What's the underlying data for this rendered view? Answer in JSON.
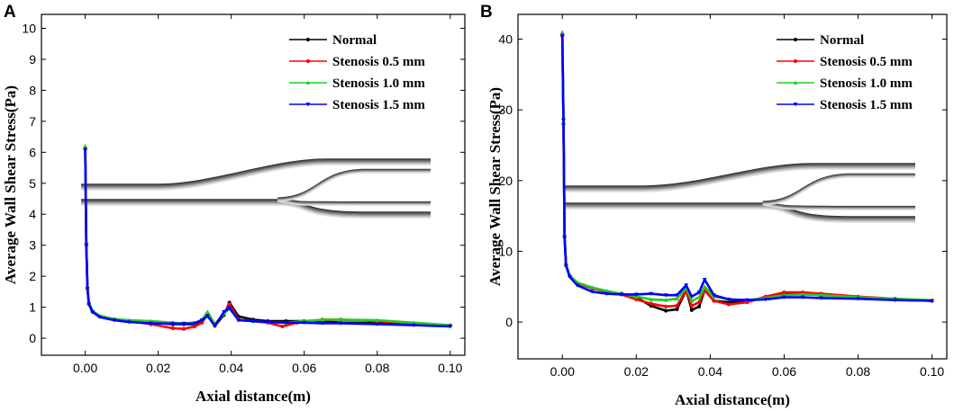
{
  "chart_data": [
    {
      "panel": "A",
      "type": "line",
      "xlabel": "Axial distance(m)",
      "ylabel": "Average Wall Shear Stress(Pa)",
      "xlim": [
        -0.012,
        0.104
      ],
      "ylim": [
        -0.55,
        10.45
      ],
      "xticks": [
        0.0,
        0.02,
        0.04,
        0.06,
        0.08,
        0.1
      ],
      "xtick_labels": [
        "0.00",
        "0.02",
        "0.04",
        "0.06",
        "0.08",
        "0.10"
      ],
      "yticks": [
        0,
        1,
        2,
        3,
        4,
        5,
        6,
        7,
        8,
        9,
        10
      ],
      "ytick_labels": [
        "0",
        "1",
        "2",
        "3",
        "4",
        "5",
        "6",
        "7",
        "8",
        "9",
        "10"
      ],
      "legend_position": "top-right",
      "series": [
        {
          "name": "Normal",
          "color": "#000000",
          "marker": "circle",
          "x": [
            0.0,
            0.0003,
            0.0006,
            0.001,
            0.002,
            0.004,
            0.008,
            0.012,
            0.018,
            0.024,
            0.027,
            0.03,
            0.032,
            0.0335,
            0.0355,
            0.038,
            0.0395,
            0.042,
            0.046,
            0.05,
            0.055,
            0.06,
            0.065,
            0.07,
            0.08,
            0.09,
            0.1
          ],
          "y": [
            6.1,
            3.0,
            1.6,
            1.1,
            0.85,
            0.7,
            0.6,
            0.55,
            0.5,
            0.45,
            0.45,
            0.45,
            0.55,
            0.75,
            0.4,
            0.75,
            1.15,
            0.7,
            0.6,
            0.55,
            0.55,
            0.55,
            0.55,
            0.5,
            0.48,
            0.45,
            0.4
          ]
        },
        {
          "name": "Stenosis 0.5 mm",
          "color": "#ff0000",
          "marker": "circle",
          "x": [
            0.0,
            0.0003,
            0.0006,
            0.001,
            0.002,
            0.004,
            0.008,
            0.012,
            0.018,
            0.024,
            0.027,
            0.03,
            0.032,
            0.0335,
            0.0355,
            0.038,
            0.0395,
            0.042,
            0.046,
            0.05,
            0.054,
            0.058,
            0.065,
            0.07,
            0.08,
            0.09,
            0.1
          ],
          "y": [
            6.1,
            3.0,
            1.6,
            1.1,
            0.85,
            0.7,
            0.6,
            0.55,
            0.45,
            0.32,
            0.3,
            0.38,
            0.5,
            0.78,
            0.42,
            0.8,
            1.1,
            0.6,
            0.55,
            0.5,
            0.38,
            0.5,
            0.6,
            0.6,
            0.55,
            0.48,
            0.42
          ]
        },
        {
          "name": "Stenosis 1.0 mm",
          "color": "#22cc22",
          "marker": "triangle-up",
          "x": [
            0.0,
            0.0003,
            0.0006,
            0.001,
            0.002,
            0.004,
            0.008,
            0.012,
            0.018,
            0.024,
            0.027,
            0.03,
            0.032,
            0.0335,
            0.0355,
            0.038,
            0.0395,
            0.042,
            0.046,
            0.05,
            0.055,
            0.06,
            0.065,
            0.07,
            0.08,
            0.09,
            0.1
          ],
          "y": [
            6.2,
            3.1,
            1.65,
            1.15,
            0.88,
            0.72,
            0.62,
            0.58,
            0.55,
            0.5,
            0.48,
            0.5,
            0.6,
            0.85,
            0.45,
            0.8,
            0.95,
            0.6,
            0.55,
            0.52,
            0.5,
            0.55,
            0.6,
            0.6,
            0.58,
            0.5,
            0.42
          ]
        },
        {
          "name": "Stenosis 1.5 mm",
          "color": "#0000ff",
          "marker": "triangle-down",
          "x": [
            0.0,
            0.0003,
            0.0006,
            0.001,
            0.002,
            0.004,
            0.008,
            0.012,
            0.018,
            0.024,
            0.027,
            0.03,
            0.032,
            0.0335,
            0.0355,
            0.038,
            0.0395,
            0.042,
            0.046,
            0.05,
            0.055,
            0.06,
            0.065,
            0.07,
            0.08,
            0.09,
            0.1
          ],
          "y": [
            6.1,
            3.0,
            1.6,
            1.1,
            0.85,
            0.68,
            0.58,
            0.52,
            0.48,
            0.47,
            0.47,
            0.48,
            0.58,
            0.72,
            0.4,
            0.85,
            0.98,
            0.58,
            0.55,
            0.52,
            0.5,
            0.5,
            0.48,
            0.48,
            0.45,
            0.42,
            0.38
          ]
        }
      ]
    },
    {
      "panel": "B",
      "type": "line",
      "xlabel": "Axial distance(m)",
      "ylabel": "Average Wall Shear Stress(Pa)",
      "xlim": [
        -0.012,
        0.104
      ],
      "ylim": [
        -5.2,
        43.5
      ],
      "xticks": [
        0.0,
        0.02,
        0.04,
        0.06,
        0.08,
        0.1
      ],
      "xtick_labels": [
        "0.00",
        "0.02",
        "0.04",
        "0.06",
        "0.08",
        "0.10"
      ],
      "yticks": [
        0,
        10,
        20,
        30,
        40
      ],
      "ytick_labels": [
        "0",
        "10",
        "20",
        "30",
        "40"
      ],
      "legend_position": "top-right",
      "series": [
        {
          "name": "Normal",
          "color": "#000000",
          "marker": "circle",
          "x": [
            0.0,
            0.0003,
            0.0006,
            0.001,
            0.002,
            0.004,
            0.008,
            0.012,
            0.016,
            0.02,
            0.024,
            0.028,
            0.031,
            0.0335,
            0.035,
            0.037,
            0.0385,
            0.041,
            0.045,
            0.05,
            0.055,
            0.06,
            0.065,
            0.07,
            0.08,
            0.09,
            0.1
          ],
          "y": [
            40.5,
            28.0,
            12.0,
            8.0,
            6.5,
            5.5,
            4.8,
            4.3,
            4.0,
            3.5,
            2.3,
            1.6,
            1.8,
            4.5,
            1.7,
            2.2,
            4.5,
            3.0,
            2.8,
            3.0,
            3.5,
            4.0,
            4.0,
            3.8,
            3.5,
            3.2,
            3.0
          ]
        },
        {
          "name": "Stenosis 0.5 mm",
          "color": "#ff0000",
          "marker": "circle",
          "x": [
            0.0,
            0.0003,
            0.0006,
            0.001,
            0.002,
            0.004,
            0.008,
            0.012,
            0.016,
            0.02,
            0.024,
            0.028,
            0.031,
            0.0335,
            0.035,
            0.037,
            0.0385,
            0.041,
            0.045,
            0.05,
            0.055,
            0.06,
            0.065,
            0.07,
            0.08,
            0.09,
            0.1
          ],
          "y": [
            40.5,
            28.0,
            12.0,
            8.0,
            6.5,
            5.5,
            4.8,
            4.3,
            3.9,
            3.2,
            2.6,
            2.2,
            2.3,
            4.5,
            2.3,
            2.8,
            4.5,
            3.0,
            2.5,
            2.8,
            3.6,
            4.2,
            4.2,
            4.0,
            3.6,
            3.3,
            3.0
          ]
        },
        {
          "name": "Stenosis 1.0 mm",
          "color": "#22cc22",
          "marker": "triangle-up",
          "x": [
            0.0,
            0.0003,
            0.0006,
            0.001,
            0.002,
            0.004,
            0.008,
            0.012,
            0.016,
            0.02,
            0.024,
            0.028,
            0.031,
            0.0335,
            0.035,
            0.037,
            0.0385,
            0.041,
            0.045,
            0.05,
            0.055,
            0.06,
            0.065,
            0.07,
            0.08,
            0.09,
            0.1
          ],
          "y": [
            41.0,
            29.0,
            12.2,
            8.2,
            6.6,
            5.6,
            4.9,
            4.4,
            4.0,
            3.6,
            3.2,
            3.1,
            3.3,
            4.8,
            3.0,
            3.5,
            5.0,
            3.6,
            3.2,
            3.1,
            3.4,
            3.8,
            3.9,
            3.8,
            3.5,
            3.3,
            3.1
          ]
        },
        {
          "name": "Stenosis 1.5 mm",
          "color": "#0000ff",
          "marker": "triangle-down",
          "x": [
            0.0,
            0.0003,
            0.0006,
            0.001,
            0.002,
            0.004,
            0.008,
            0.012,
            0.016,
            0.02,
            0.024,
            0.028,
            0.031,
            0.0335,
            0.035,
            0.037,
            0.0385,
            0.041,
            0.045,
            0.05,
            0.055,
            0.06,
            0.065,
            0.07,
            0.08,
            0.09,
            0.1
          ],
          "y": [
            40.5,
            28.5,
            12.0,
            8.0,
            6.4,
            5.2,
            4.3,
            4.0,
            3.9,
            3.9,
            4.0,
            3.8,
            3.8,
            5.2,
            3.6,
            4.2,
            6.0,
            3.8,
            3.2,
            3.1,
            3.2,
            3.5,
            3.5,
            3.4,
            3.3,
            3.1,
            3.0
          ]
        }
      ]
    }
  ]
}
